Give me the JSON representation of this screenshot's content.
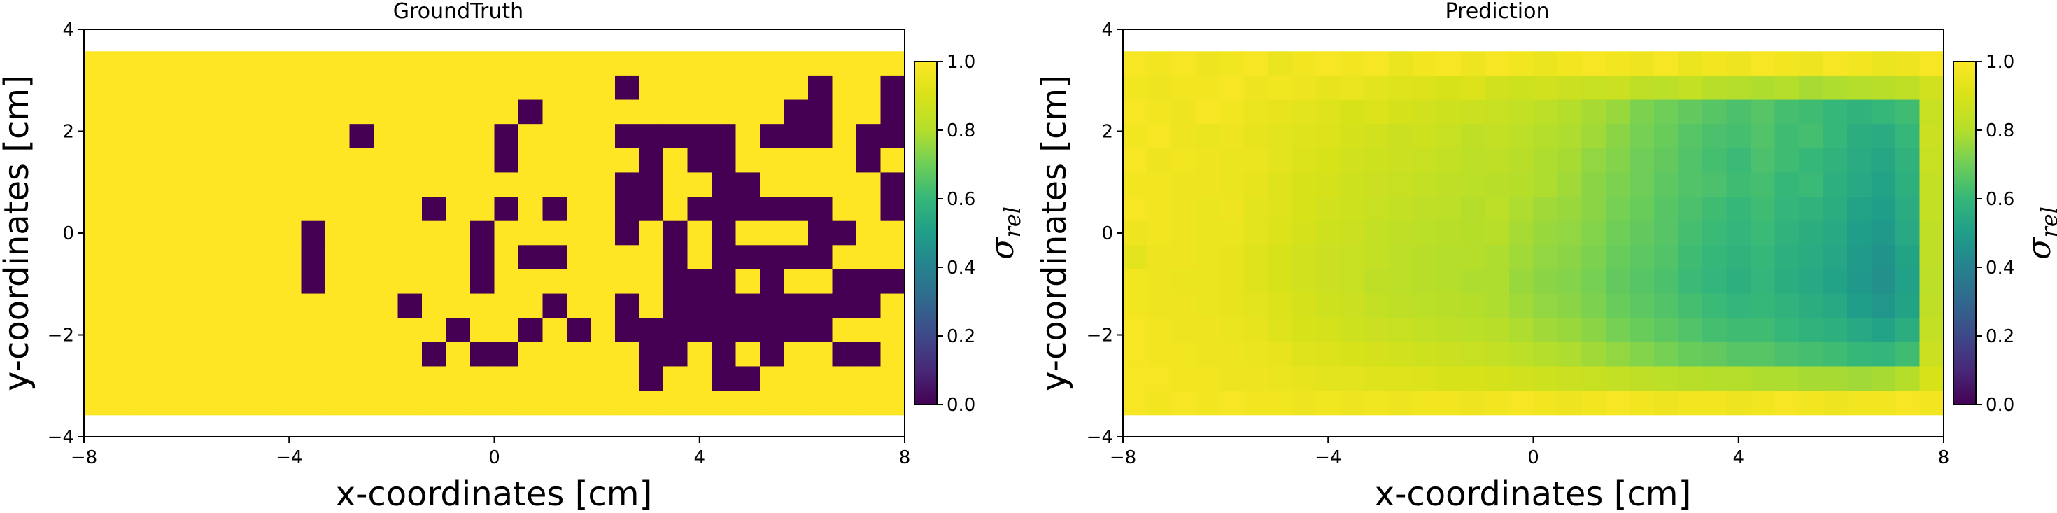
{
  "chart_data": [
    {
      "type": "heatmap",
      "title": "GroundTruth",
      "xlabel": "x-coordinates [cm]",
      "ylabel": "y-coordinates [cm]",
      "xlim": [
        -8,
        8
      ],
      "ylim": [
        -4,
        4
      ],
      "xticks": [
        -8,
        -4,
        0,
        4,
        8
      ],
      "yticks": [
        -4,
        -2,
        0,
        2,
        4
      ],
      "xtick_labels": [
        "−8",
        "−4",
        "0",
        "4",
        "8"
      ],
      "ytick_labels": [
        "−4",
        "−2",
        "0",
        "2",
        "4"
      ],
      "extent": [
        -8,
        8,
        -3.57,
        3.57
      ],
      "colormap": "viridis",
      "colorbar": {
        "label": "σ_rel",
        "vmin": 0.0,
        "vmax": 1.0,
        "ticks": [
          "0.0",
          "0.2",
          "0.4",
          "0.6",
          "0.8",
          "1.0"
        ]
      },
      "grid_size": [
        34,
        15
      ],
      "note_zero_cells": "cells listed as [col,row] (col 0 = x -8, row 0 = top) have value 0.0; all other cells 1.0",
      "zero_cells": [
        [
          22,
          1
        ],
        [
          30,
          1
        ],
        [
          33,
          1
        ],
        [
          18,
          2
        ],
        [
          29,
          2
        ],
        [
          30,
          2
        ],
        [
          33,
          2
        ],
        [
          11,
          3
        ],
        [
          17,
          3
        ],
        [
          22,
          3
        ],
        [
          23,
          3
        ],
        [
          24,
          3
        ],
        [
          25,
          3
        ],
        [
          26,
          3
        ],
        [
          28,
          3
        ],
        [
          29,
          3
        ],
        [
          30,
          3
        ],
        [
          32,
          3
        ],
        [
          33,
          3
        ],
        [
          17,
          4
        ],
        [
          23,
          4
        ],
        [
          25,
          4
        ],
        [
          26,
          4
        ],
        [
          32,
          4
        ],
        [
          22,
          5
        ],
        [
          23,
          5
        ],
        [
          26,
          5
        ],
        [
          27,
          5
        ],
        [
          33,
          5
        ],
        [
          14,
          6
        ],
        [
          17,
          6
        ],
        [
          19,
          6
        ],
        [
          22,
          6
        ],
        [
          23,
          6
        ],
        [
          25,
          6
        ],
        [
          26,
          6
        ],
        [
          27,
          6
        ],
        [
          28,
          6
        ],
        [
          29,
          6
        ],
        [
          30,
          6
        ],
        [
          33,
          6
        ],
        [
          9,
          7
        ],
        [
          16,
          7
        ],
        [
          22,
          7
        ],
        [
          24,
          7
        ],
        [
          26,
          7
        ],
        [
          30,
          7
        ],
        [
          31,
          7
        ],
        [
          9,
          8
        ],
        [
          16,
          8
        ],
        [
          18,
          8
        ],
        [
          19,
          8
        ],
        [
          24,
          8
        ],
        [
          26,
          8
        ],
        [
          27,
          8
        ],
        [
          28,
          8
        ],
        [
          29,
          8
        ],
        [
          30,
          8
        ],
        [
          9,
          9
        ],
        [
          16,
          9
        ],
        [
          24,
          9
        ],
        [
          25,
          9
        ],
        [
          26,
          9
        ],
        [
          28,
          9
        ],
        [
          31,
          9
        ],
        [
          32,
          9
        ],
        [
          33,
          9
        ],
        [
          13,
          10
        ],
        [
          19,
          10
        ],
        [
          22,
          10
        ],
        [
          24,
          10
        ],
        [
          25,
          10
        ],
        [
          26,
          10
        ],
        [
          27,
          10
        ],
        [
          28,
          10
        ],
        [
          29,
          10
        ],
        [
          30,
          10
        ],
        [
          31,
          10
        ],
        [
          32,
          10
        ],
        [
          15,
          11
        ],
        [
          18,
          11
        ],
        [
          20,
          11
        ],
        [
          22,
          11
        ],
        [
          23,
          11
        ],
        [
          24,
          11
        ],
        [
          25,
          11
        ],
        [
          26,
          11
        ],
        [
          27,
          11
        ],
        [
          28,
          11
        ],
        [
          29,
          11
        ],
        [
          30,
          11
        ],
        [
          14,
          12
        ],
        [
          16,
          12
        ],
        [
          17,
          12
        ],
        [
          23,
          12
        ],
        [
          24,
          12
        ],
        [
          26,
          12
        ],
        [
          28,
          12
        ],
        [
          31,
          12
        ],
        [
          32,
          12
        ],
        [
          23,
          13
        ],
        [
          26,
          13
        ],
        [
          27,
          13
        ]
      ]
    },
    {
      "type": "heatmap",
      "title": "Prediction",
      "xlabel": "x-coordinates [cm]",
      "ylabel": "y-coordinates [cm]",
      "xlim": [
        -8,
        8
      ],
      "ylim": [
        -4,
        4
      ],
      "xticks": [
        -8,
        -4,
        0,
        4,
        8
      ],
      "yticks": [
        -4,
        -2,
        0,
        2,
        4
      ],
      "xtick_labels": [
        "−8",
        "−4",
        "0",
        "4",
        "8"
      ],
      "ytick_labels": [
        "−4",
        "−2",
        "0",
        "2",
        "4"
      ],
      "extent": [
        -8,
        8,
        -3.57,
        3.57
      ],
      "colormap": "viridis",
      "colorbar": {
        "label": "σ_rel",
        "vmin": 0.0,
        "vmax": 1.0,
        "ticks": [
          "0.0",
          "0.2",
          "0.4",
          "0.6",
          "0.8",
          "1.0"
        ]
      },
      "grid_size": [
        34,
        15
      ],
      "note_values": "approximate per-cell values, rows listed top (y=+3.57) to bottom (y=-3.57), 34 columns from x=-8 to x=8",
      "values": [
        [
          0.98,
          0.97,
          0.98,
          0.96,
          0.97,
          0.98,
          0.95,
          0.97,
          0.98,
          0.97,
          0.98,
          0.95,
          0.97,
          0.98,
          0.96,
          0.98,
          0.97,
          0.95,
          0.97,
          0.98,
          0.97,
          0.96,
          0.98,
          0.95,
          0.97,
          0.96,
          0.98,
          0.97,
          0.96,
          0.98,
          0.97,
          0.95,
          0.96,
          0.98
        ],
        [
          0.97,
          0.96,
          0.97,
          0.97,
          0.98,
          0.96,
          0.97,
          0.96,
          0.94,
          0.95,
          0.93,
          0.92,
          0.91,
          0.9,
          0.91,
          0.88,
          0.87,
          0.88,
          0.86,
          0.85,
          0.86,
          0.83,
          0.82,
          0.84,
          0.81,
          0.8,
          0.79,
          0.8,
          0.78,
          0.79,
          0.8,
          0.81,
          0.83,
          0.88
        ],
        [
          0.98,
          0.97,
          0.96,
          0.98,
          0.97,
          0.95,
          0.94,
          0.93,
          0.92,
          0.9,
          0.91,
          0.89,
          0.88,
          0.87,
          0.86,
          0.85,
          0.84,
          0.82,
          0.8,
          0.78,
          0.76,
          0.72,
          0.7,
          0.68,
          0.66,
          0.64,
          0.66,
          0.63,
          0.62,
          0.6,
          0.58,
          0.6,
          0.62,
          0.85
        ],
        [
          0.97,
          0.98,
          0.96,
          0.95,
          0.96,
          0.94,
          0.93,
          0.92,
          0.91,
          0.89,
          0.88,
          0.86,
          0.87,
          0.85,
          0.83,
          0.84,
          0.82,
          0.8,
          0.79,
          0.77,
          0.74,
          0.71,
          0.69,
          0.66,
          0.64,
          0.63,
          0.65,
          0.62,
          0.63,
          0.6,
          0.56,
          0.55,
          0.6,
          0.86
        ],
        [
          0.98,
          0.96,
          0.97,
          0.96,
          0.95,
          0.95,
          0.93,
          0.91,
          0.9,
          0.88,
          0.87,
          0.86,
          0.85,
          0.84,
          0.82,
          0.83,
          0.81,
          0.79,
          0.78,
          0.75,
          0.73,
          0.7,
          0.68,
          0.65,
          0.63,
          0.61,
          0.64,
          0.62,
          0.6,
          0.58,
          0.55,
          0.53,
          0.58,
          0.85
        ],
        [
          0.97,
          0.97,
          0.96,
          0.96,
          0.95,
          0.94,
          0.92,
          0.9,
          0.89,
          0.87,
          0.86,
          0.85,
          0.84,
          0.83,
          0.82,
          0.81,
          0.8,
          0.79,
          0.77,
          0.74,
          0.72,
          0.7,
          0.67,
          0.65,
          0.64,
          0.62,
          0.63,
          0.6,
          0.61,
          0.57,
          0.54,
          0.52,
          0.57,
          0.84
        ],
        [
          0.98,
          0.97,
          0.96,
          0.95,
          0.96,
          0.93,
          0.92,
          0.9,
          0.88,
          0.87,
          0.85,
          0.84,
          0.83,
          0.82,
          0.8,
          0.82,
          0.79,
          0.77,
          0.76,
          0.74,
          0.71,
          0.69,
          0.66,
          0.64,
          0.62,
          0.6,
          0.62,
          0.59,
          0.58,
          0.56,
          0.52,
          0.5,
          0.55,
          0.84
        ],
        [
          0.96,
          0.97,
          0.96,
          0.95,
          0.95,
          0.93,
          0.91,
          0.89,
          0.87,
          0.86,
          0.84,
          0.83,
          0.82,
          0.81,
          0.8,
          0.81,
          0.78,
          0.76,
          0.75,
          0.73,
          0.7,
          0.68,
          0.66,
          0.63,
          0.61,
          0.59,
          0.61,
          0.58,
          0.56,
          0.54,
          0.5,
          0.48,
          0.54,
          0.83
        ],
        [
          0.93,
          0.96,
          0.96,
          0.95,
          0.94,
          0.92,
          0.9,
          0.88,
          0.86,
          0.85,
          0.84,
          0.82,
          0.81,
          0.8,
          0.8,
          0.79,
          0.77,
          0.75,
          0.74,
          0.72,
          0.69,
          0.67,
          0.65,
          0.62,
          0.6,
          0.58,
          0.6,
          0.57,
          0.55,
          0.53,
          0.49,
          0.46,
          0.52,
          0.83
        ],
        [
          0.97,
          0.96,
          0.95,
          0.95,
          0.94,
          0.92,
          0.9,
          0.88,
          0.86,
          0.85,
          0.83,
          0.82,
          0.81,
          0.8,
          0.79,
          0.79,
          0.76,
          0.74,
          0.73,
          0.71,
          0.68,
          0.66,
          0.64,
          0.61,
          0.59,
          0.57,
          0.59,
          0.56,
          0.54,
          0.52,
          0.48,
          0.45,
          0.51,
          0.82
        ],
        [
          0.97,
          0.96,
          0.96,
          0.95,
          0.94,
          0.93,
          0.91,
          0.89,
          0.87,
          0.86,
          0.84,
          0.83,
          0.82,
          0.81,
          0.8,
          0.79,
          0.77,
          0.75,
          0.74,
          0.72,
          0.69,
          0.67,
          0.65,
          0.63,
          0.61,
          0.59,
          0.6,
          0.58,
          0.56,
          0.54,
          0.5,
          0.47,
          0.52,
          0.83
        ],
        [
          0.98,
          0.97,
          0.96,
          0.96,
          0.95,
          0.94,
          0.92,
          0.9,
          0.89,
          0.87,
          0.86,
          0.85,
          0.84,
          0.83,
          0.82,
          0.81,
          0.79,
          0.77,
          0.76,
          0.74,
          0.71,
          0.69,
          0.67,
          0.65,
          0.63,
          0.62,
          0.62,
          0.6,
          0.58,
          0.57,
          0.54,
          0.52,
          0.56,
          0.84
        ],
        [
          0.98,
          0.97,
          0.97,
          0.96,
          0.96,
          0.95,
          0.94,
          0.92,
          0.91,
          0.9,
          0.89,
          0.88,
          0.87,
          0.86,
          0.85,
          0.84,
          0.82,
          0.8,
          0.79,
          0.77,
          0.75,
          0.73,
          0.71,
          0.69,
          0.68,
          0.66,
          0.66,
          0.64,
          0.63,
          0.62,
          0.6,
          0.59,
          0.62,
          0.86
        ],
        [
          0.98,
          0.98,
          0.97,
          0.97,
          0.96,
          0.96,
          0.95,
          0.94,
          0.93,
          0.93,
          0.92,
          0.92,
          0.91,
          0.9,
          0.9,
          0.89,
          0.88,
          0.87,
          0.86,
          0.85,
          0.84,
          0.83,
          0.82,
          0.81,
          0.8,
          0.8,
          0.79,
          0.79,
          0.78,
          0.78,
          0.77,
          0.78,
          0.8,
          0.9
        ],
        [
          0.98,
          0.97,
          0.98,
          0.97,
          0.98,
          0.97,
          0.97,
          0.96,
          0.97,
          0.96,
          0.97,
          0.96,
          0.97,
          0.97,
          0.96,
          0.97,
          0.98,
          0.97,
          0.96,
          0.97,
          0.98,
          0.97,
          0.96,
          0.97,
          0.97,
          0.96,
          0.97,
          0.98,
          0.97,
          0.96,
          0.97,
          0.97,
          0.98,
          0.97
        ]
      ]
    }
  ]
}
